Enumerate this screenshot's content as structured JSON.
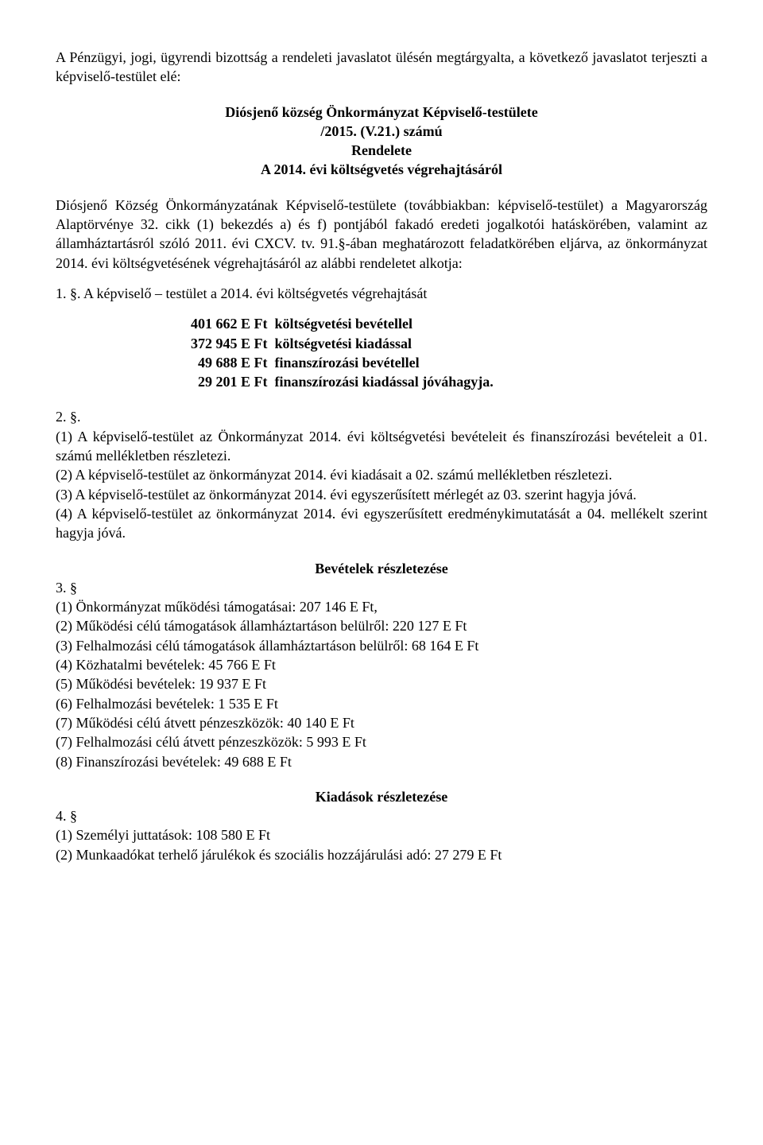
{
  "intro": "A Pénzügyi, jogi, ügyrendi bizottság a rendeleti javaslatot ülésén megtárgyalta, a következő javaslatot terjeszti a képviselő-testület elé:",
  "title_lines": {
    "l1": "Diósjenő község Önkormányzat Képviselő-testülete",
    "l2": "/2015. (V.21.) számú",
    "l3": "Rendelete",
    "l4": "A 2014. évi költségvetés végrehajtásáról"
  },
  "preamble": "Diósjenő Község Önkormányzatának Képviselő-testülete (továbbiakban: képviselő-testület) a Magyarország Alaptörvénye 32. cikk (1) bekezdés a) és f) pontjából fakadó eredeti jogalkotói hatáskörében, valamint az államháztartásról szóló 2011. évi CXCV. tv. 91.§-ában meghatározott feladatkörében eljárva, az önkormányzat 2014. évi költségvetésének végrehajtásáról az alábbi rendeletet alkotja:",
  "s1_lead": "1. §. A képviselő – testület a 2014. évi költségvetés végrehajtását",
  "amounts": {
    "r1": "401 662 E Ft  költségvetési bevétellel",
    "r2": "372 945 E Ft  költségvetési kiadással",
    "r3": "  49 688 E Ft  finanszírozási bevétellel",
    "r4": "  29 201 E Ft  finanszírozási kiadással jóváhagyja."
  },
  "s2": {
    "head": "2. §.",
    "p1": "(1) A képviselő-testület az Önkormányzat 2014. évi költségvetési bevételeit és finanszírozási bevételeit a 01. számú mellékletben részletezi.",
    "p2": "(2) A képviselő-testület az önkormányzat 2014. évi kiadásait a 02. számú mellékletben részletezi.",
    "p3": "(3) A képviselő-testület az önkormányzat 2014. évi egyszerűsített mérlegét az 03. szerint hagyja jóvá.",
    "p4": "(4) A képviselő-testület az önkormányzat 2014. évi egyszerűsített eredménykimutatását a 04. mellékelt szerint hagyja jóvá."
  },
  "bev_title": "Bevételek részletezése",
  "s3": {
    "head": "3. §",
    "i1": "(1) Önkormányzat működési támogatásai: 207 146 E Ft,",
    "i2": "(2) Működési célú támogatások államháztartáson belülről: 220 127 E Ft",
    "i3": "(3) Felhalmozási célú támogatások államháztartáson belülről: 68 164 E Ft",
    "i4": "(4) Közhatalmi bevételek: 45 766 E Ft",
    "i5": "(5) Működési bevételek: 19 937 E Ft",
    "i6": "(6) Felhalmozási bevételek: 1 535 E Ft",
    "i7": "(7) Működési célú átvett pénzeszközök: 40 140 E Ft",
    "i8": "(7) Felhalmozási célú átvett pénzeszközök: 5 993 E Ft",
    "i9": "(8) Finanszírozási bevételek: 49 688 E Ft"
  },
  "kiad_title": "Kiadások részletezése",
  "s4": {
    "head": "4. §",
    "i1": "(1) Személyi juttatások: 108 580 E Ft",
    "i2": "(2) Munkaadókat terhelő járulékok és szociális hozzájárulási adó: 27 279 E Ft"
  }
}
